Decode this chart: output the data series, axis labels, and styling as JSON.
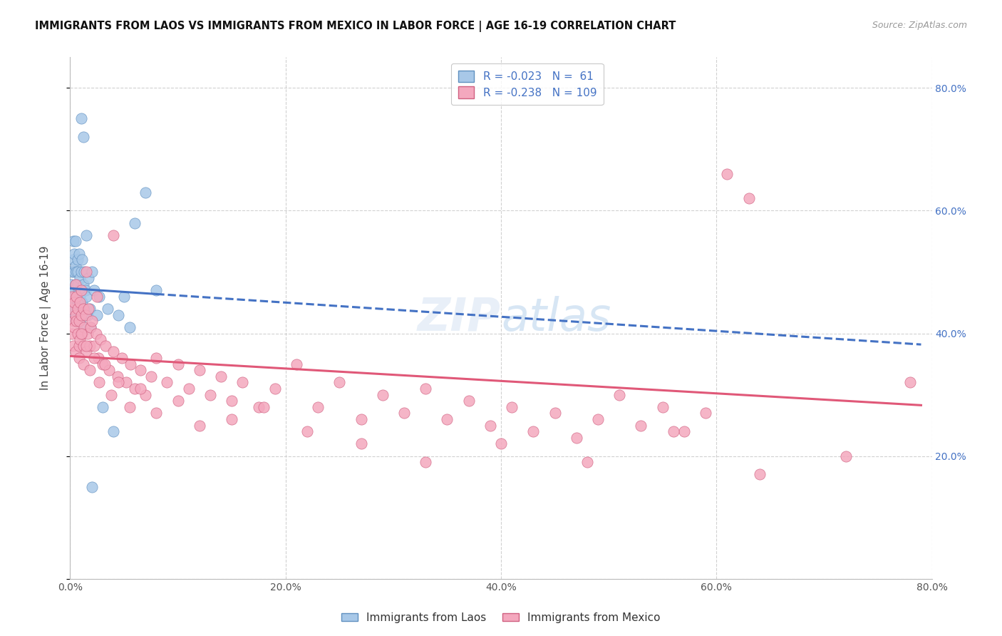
{
  "title": "IMMIGRANTS FROM LAOS VS IMMIGRANTS FROM MEXICO IN LABOR FORCE | AGE 16-19 CORRELATION CHART",
  "source": "Source: ZipAtlas.com",
  "ylabel": "In Labor Force | Age 16-19",
  "xlim": [
    0.0,
    0.8
  ],
  "ylim": [
    0.0,
    0.85
  ],
  "xtick_vals": [
    0.0,
    0.2,
    0.4,
    0.6,
    0.8
  ],
  "xtick_labels": [
    "0.0%",
    "20.0%",
    "40.0%",
    "60.0%",
    "80.0%"
  ],
  "ytick_vals": [
    0.0,
    0.2,
    0.4,
    0.6,
    0.8
  ],
  "ytick_right_vals": [
    0.2,
    0.4,
    0.6,
    0.8
  ],
  "ytick_right_labels": [
    "20.0%",
    "40.0%",
    "60.0%",
    "80.0%"
  ],
  "laos_R": -0.023,
  "laos_N": 61,
  "mexico_R": -0.238,
  "mexico_N": 109,
  "laos_color": "#a8c8e8",
  "mexico_color": "#f4a8be",
  "laos_edge_color": "#6090c0",
  "mexico_edge_color": "#d06080",
  "laos_line_color": "#4472c4",
  "mexico_line_color": "#e05878",
  "watermark": "ZIPatlas",
  "legend_laos": "R = -0.023   N =  61",
  "legend_mexico": "R = -0.238   N = 109",
  "legend_bottom_laos": "Immigrants from Laos",
  "legend_bottom_mexico": "Immigrants from Mexico",
  "laos_x": [
    0.001,
    0.001,
    0.002,
    0.002,
    0.003,
    0.003,
    0.003,
    0.004,
    0.004,
    0.004,
    0.004,
    0.005,
    0.005,
    0.005,
    0.005,
    0.005,
    0.006,
    0.006,
    0.006,
    0.007,
    0.007,
    0.007,
    0.007,
    0.008,
    0.008,
    0.008,
    0.009,
    0.009,
    0.009,
    0.01,
    0.01,
    0.01,
    0.011,
    0.011,
    0.012,
    0.012,
    0.013,
    0.013,
    0.014,
    0.015,
    0.016,
    0.017,
    0.018,
    0.019,
    0.02,
    0.022,
    0.025,
    0.027,
    0.03,
    0.035,
    0.04,
    0.045,
    0.05,
    0.055,
    0.06,
    0.07,
    0.08,
    0.01,
    0.012,
    0.015,
    0.02
  ],
  "laos_y": [
    0.45,
    0.48,
    0.43,
    0.5,
    0.52,
    0.55,
    0.47,
    0.44,
    0.5,
    0.53,
    0.46,
    0.42,
    0.48,
    0.51,
    0.44,
    0.55,
    0.46,
    0.5,
    0.43,
    0.48,
    0.52,
    0.45,
    0.5,
    0.47,
    0.53,
    0.44,
    0.49,
    0.46,
    0.42,
    0.5,
    0.47,
    0.43,
    0.52,
    0.45,
    0.48,
    0.41,
    0.5,
    0.44,
    0.47,
    0.46,
    0.43,
    0.49,
    0.44,
    0.41,
    0.5,
    0.47,
    0.43,
    0.46,
    0.28,
    0.44,
    0.24,
    0.43,
    0.46,
    0.41,
    0.58,
    0.63,
    0.47,
    0.75,
    0.72,
    0.56,
    0.15
  ],
  "mexico_x": [
    0.001,
    0.002,
    0.002,
    0.003,
    0.003,
    0.004,
    0.004,
    0.005,
    0.005,
    0.005,
    0.006,
    0.006,
    0.007,
    0.007,
    0.008,
    0.008,
    0.009,
    0.009,
    0.01,
    0.01,
    0.011,
    0.012,
    0.012,
    0.013,
    0.014,
    0.015,
    0.016,
    0.017,
    0.018,
    0.019,
    0.02,
    0.022,
    0.024,
    0.026,
    0.028,
    0.03,
    0.033,
    0.036,
    0.04,
    0.044,
    0.048,
    0.052,
    0.056,
    0.06,
    0.065,
    0.07,
    0.075,
    0.08,
    0.09,
    0.1,
    0.11,
    0.12,
    0.13,
    0.14,
    0.15,
    0.16,
    0.175,
    0.19,
    0.21,
    0.23,
    0.25,
    0.27,
    0.29,
    0.31,
    0.33,
    0.35,
    0.37,
    0.39,
    0.41,
    0.43,
    0.45,
    0.47,
    0.49,
    0.51,
    0.53,
    0.55,
    0.57,
    0.59,
    0.61,
    0.63,
    0.008,
    0.01,
    0.012,
    0.015,
    0.018,
    0.022,
    0.027,
    0.032,
    0.038,
    0.045,
    0.055,
    0.065,
    0.08,
    0.1,
    0.12,
    0.15,
    0.18,
    0.22,
    0.27,
    0.33,
    0.4,
    0.48,
    0.56,
    0.64,
    0.72,
    0.78,
    0.015,
    0.025,
    0.04
  ],
  "mexico_y": [
    0.44,
    0.4,
    0.46,
    0.42,
    0.38,
    0.45,
    0.41,
    0.43,
    0.48,
    0.37,
    0.42,
    0.46,
    0.4,
    0.44,
    0.38,
    0.42,
    0.45,
    0.39,
    0.43,
    0.47,
    0.4,
    0.44,
    0.38,
    0.41,
    0.43,
    0.37,
    0.4,
    0.44,
    0.38,
    0.41,
    0.42,
    0.38,
    0.4,
    0.36,
    0.39,
    0.35,
    0.38,
    0.34,
    0.37,
    0.33,
    0.36,
    0.32,
    0.35,
    0.31,
    0.34,
    0.3,
    0.33,
    0.36,
    0.32,
    0.35,
    0.31,
    0.34,
    0.3,
    0.33,
    0.29,
    0.32,
    0.28,
    0.31,
    0.35,
    0.28,
    0.32,
    0.26,
    0.3,
    0.27,
    0.31,
    0.26,
    0.29,
    0.25,
    0.28,
    0.24,
    0.27,
    0.23,
    0.26,
    0.3,
    0.25,
    0.28,
    0.24,
    0.27,
    0.66,
    0.62,
    0.36,
    0.4,
    0.35,
    0.38,
    0.34,
    0.36,
    0.32,
    0.35,
    0.3,
    0.32,
    0.28,
    0.31,
    0.27,
    0.29,
    0.25,
    0.26,
    0.28,
    0.24,
    0.22,
    0.19,
    0.22,
    0.19,
    0.24,
    0.17,
    0.2,
    0.32,
    0.5,
    0.46,
    0.56
  ]
}
